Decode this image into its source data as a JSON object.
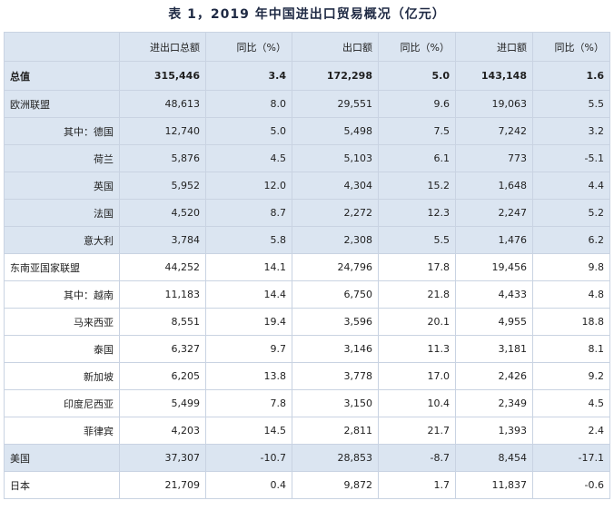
{
  "title": "表 1，2019 年中国进出口贸易概况（亿元）",
  "headers": [
    "",
    "进出口总额",
    "同比（%）",
    "出口额",
    "同比（%）",
    "进口额",
    "同比（%）"
  ],
  "rows": [
    {
      "name": "总值",
      "total": "315,446",
      "total_yoy": "3.4",
      "export": "172,298",
      "export_yoy": "5.0",
      "import": "143,148",
      "import_yoy": "1.6",
      "style": "total",
      "sub": false
    },
    {
      "name": "欧洲联盟",
      "total": "48,613",
      "total_yoy": "8.0",
      "export": "29,551",
      "export_yoy": "9.6",
      "import": "19,063",
      "import_yoy": "5.5",
      "style": "shade",
      "sub": false
    },
    {
      "name": "其中：德国",
      "total": "12,740",
      "total_yoy": "5.0",
      "export": "5,498",
      "export_yoy": "7.5",
      "import": "7,242",
      "import_yoy": "3.2",
      "style": "shade",
      "sub": true
    },
    {
      "name": "荷兰",
      "total": "5,876",
      "total_yoy": "4.5",
      "export": "5,103",
      "export_yoy": "6.1",
      "import": "773",
      "import_yoy": "-5.1",
      "style": "shade",
      "sub": true
    },
    {
      "name": "英国",
      "total": "5,952",
      "total_yoy": "12.0",
      "export": "4,304",
      "export_yoy": "15.2",
      "import": "1,648",
      "import_yoy": "4.4",
      "style": "shade",
      "sub": true
    },
    {
      "name": "法国",
      "total": "4,520",
      "total_yoy": "8.7",
      "export": "2,272",
      "export_yoy": "12.3",
      "import": "2,247",
      "import_yoy": "5.2",
      "style": "shade",
      "sub": true
    },
    {
      "name": "意大利",
      "total": "3,784",
      "total_yoy": "5.8",
      "export": "2,308",
      "export_yoy": "5.5",
      "import": "1,476",
      "import_yoy": "6.2",
      "style": "shade",
      "sub": true
    },
    {
      "name": "东南亚国家联盟",
      "total": "44,252",
      "total_yoy": "14.1",
      "export": "24,796",
      "export_yoy": "17.8",
      "import": "19,456",
      "import_yoy": "9.8",
      "style": "plain",
      "sub": false
    },
    {
      "name": "其中：越南",
      "total": "11,183",
      "total_yoy": "14.4",
      "export": "6,750",
      "export_yoy": "21.8",
      "import": "4,433",
      "import_yoy": "4.8",
      "style": "plain",
      "sub": true
    },
    {
      "name": "马来西亚",
      "total": "8,551",
      "total_yoy": "19.4",
      "export": "3,596",
      "export_yoy": "20.1",
      "import": "4,955",
      "import_yoy": "18.8",
      "style": "plain",
      "sub": true
    },
    {
      "name": "泰国",
      "total": "6,327",
      "total_yoy": "9.7",
      "export": "3,146",
      "export_yoy": "11.3",
      "import": "3,181",
      "import_yoy": "8.1",
      "style": "plain",
      "sub": true
    },
    {
      "name": "新加坡",
      "total": "6,205",
      "total_yoy": "13.8",
      "export": "3,778",
      "export_yoy": "17.0",
      "import": "2,426",
      "import_yoy": "9.2",
      "style": "plain",
      "sub": true
    },
    {
      "name": "印度尼西亚",
      "total": "5,499",
      "total_yoy": "7.8",
      "export": "3,150",
      "export_yoy": "10.4",
      "import": "2,349",
      "import_yoy": "4.5",
      "style": "plain",
      "sub": true
    },
    {
      "name": "菲律宾",
      "total": "4,203",
      "total_yoy": "14.5",
      "export": "2,811",
      "export_yoy": "21.7",
      "import": "1,393",
      "import_yoy": "2.4",
      "style": "plain",
      "sub": true
    },
    {
      "name": "美国",
      "total": "37,307",
      "total_yoy": "-10.7",
      "export": "28,853",
      "export_yoy": "-8.7",
      "import": "8,454",
      "import_yoy": "-17.1",
      "style": "shade",
      "sub": false
    },
    {
      "name": "日本",
      "total": "21,709",
      "total_yoy": "0.4",
      "export": "9,872",
      "export_yoy": "1.7",
      "import": "11,837",
      "import_yoy": "-0.6",
      "style": "plain",
      "sub": false
    }
  ]
}
